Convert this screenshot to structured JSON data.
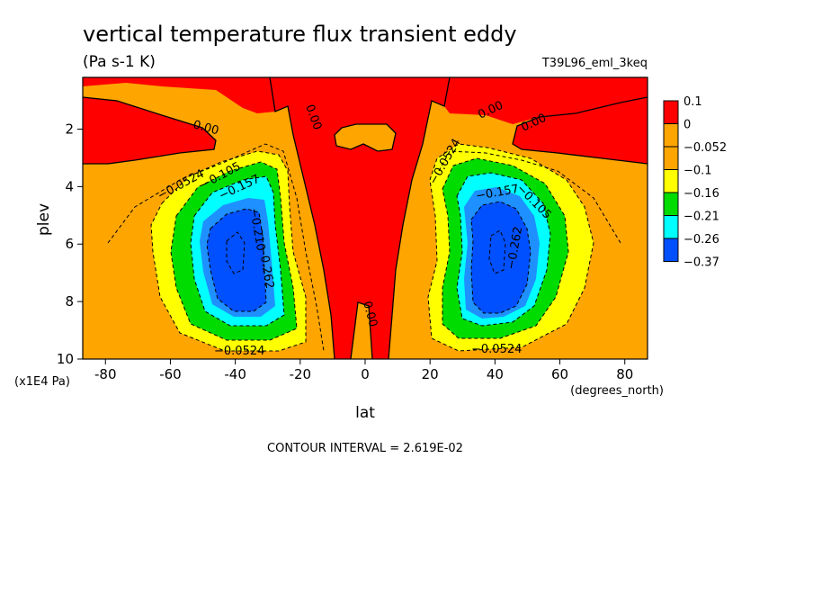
{
  "header": {
    "title": "vertical temperature flux transient eddy",
    "units": "(Pa s-1 K)",
    "run_label": "T39L96_eml_3keq",
    "footer": "CONTOUR INTERVAL = 2.619E-02"
  },
  "colors": {
    "gt_0.1": "#ff0000",
    "0_to_0.1": "#ffa500",
    "-0.052_to_0": "#ffa500",
    "-0.1_to_-0.052": "#ffff00",
    "-0.16_to_-0.1": "#00dc00",
    "-0.21_to_-0.16": "#00ffff",
    "-0.26_to_-0.21": "#1e90ff",
    "lt_-0.26": "#0050ff"
  },
  "chart_data": {
    "type": "heatmap",
    "subtype": "filled contour",
    "title": "vertical temperature flux transient eddy",
    "units": "(Pa s-1 K)",
    "xlabel": "lat",
    "xunits": "(degrees_north)",
    "ylabel": "plev",
    "yunits": "(x1E4 Pa)",
    "xlim": [
      -87,
      87
    ],
    "ylim": [
      10,
      0.2
    ],
    "x_ticks": [
      "-80",
      "-60",
      "-40",
      "-20",
      "0",
      "20",
      "40",
      "60",
      "80"
    ],
    "y_ticks": [
      "2",
      "4",
      "6",
      "8",
      "10"
    ],
    "colorbar_labels": [
      "0.1",
      "0",
      "−0.052",
      "−0.1",
      "−0.16",
      "−0.21",
      "−0.26",
      "−0.37"
    ],
    "contour_labels": [
      "0.00",
      "0.00",
      "0.00",
      "0.00",
      "0.00",
      "−0.0524",
      "−0.105",
      "−0.157",
      "−0.210",
      "−0.262",
      "−0.0524",
      "−0.0524",
      "−0.157",
      "−0.105",
      "−0.262",
      "−0.0524"
    ],
    "contour_interval": "2.619E-02",
    "extrema": [
      {
        "lat": -40,
        "plev": 6.5,
        "value": -0.37
      },
      {
        "lat": 40,
        "plev": 6.5,
        "value": -0.37
      }
    ]
  }
}
